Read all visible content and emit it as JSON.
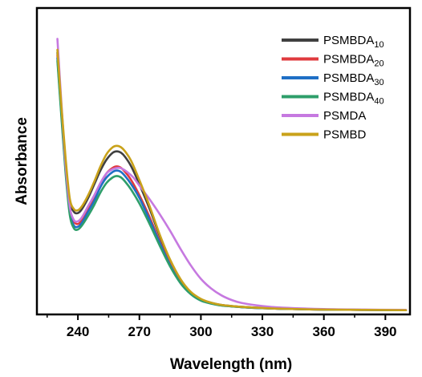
{
  "chart_data": {
    "type": "line",
    "title": "",
    "xlabel": "Wavelength (nm)",
    "ylabel": "Absorbance",
    "xlim": [
      220,
      402
    ],
    "ylim": [
      0,
      1.0
    ],
    "x_ticks": [
      240,
      270,
      300,
      330,
      360,
      390
    ],
    "x_tick_labels": [
      "240",
      "270",
      "300",
      "330",
      "360",
      "390"
    ],
    "y_tick_labels_shown": false,
    "grid": false,
    "legend": {
      "position": "top-right",
      "frame": false
    },
    "series": [
      {
        "name": "PSMBDA10",
        "label_main": "PSMBDA",
        "label_sub": "10",
        "color": "#404040",
        "x": [
          230,
          232,
          234,
          236,
          238,
          240,
          242,
          245,
          248,
          251,
          254,
          257,
          259,
          261,
          263,
          266,
          270,
          275,
          280,
          285,
          290,
          295,
          300,
          305,
          310,
          320,
          330,
          340,
          360,
          380,
          400
        ],
        "y": [
          0.94,
          0.73,
          0.54,
          0.4,
          0.36,
          0.355,
          0.37,
          0.41,
          0.46,
          0.51,
          0.55,
          0.575,
          0.58,
          0.575,
          0.56,
          0.525,
          0.46,
          0.37,
          0.27,
          0.18,
          0.11,
          0.065,
          0.04,
          0.028,
          0.02,
          0.013,
          0.009,
          0.006,
          0.003,
          0.002,
          0.001
        ]
      },
      {
        "name": "PSMBDA20",
        "label_main": "PSMBDA",
        "label_sub": "20",
        "color": "#e03a3e",
        "x": [
          230,
          232,
          234,
          236,
          238,
          240,
          242,
          245,
          248,
          251,
          254,
          257,
          259,
          261,
          263,
          266,
          270,
          275,
          280,
          285,
          290,
          295,
          300,
          305,
          310,
          320,
          330,
          340,
          360,
          380,
          400
        ],
        "y": [
          0.93,
          0.72,
          0.52,
          0.37,
          0.325,
          0.315,
          0.33,
          0.37,
          0.41,
          0.46,
          0.5,
          0.52,
          0.525,
          0.52,
          0.505,
          0.475,
          0.42,
          0.34,
          0.25,
          0.17,
          0.105,
          0.063,
          0.038,
          0.026,
          0.019,
          0.012,
          0.008,
          0.006,
          0.003,
          0.002,
          0.001
        ]
      },
      {
        "name": "PSMBDA30",
        "label_main": "PSMBDA",
        "label_sub": "30",
        "color": "#1f6fc5",
        "x": [
          230,
          232,
          234,
          236,
          238,
          240,
          242,
          245,
          248,
          251,
          254,
          257,
          259,
          261,
          263,
          266,
          270,
          275,
          280,
          285,
          290,
          295,
          300,
          305,
          310,
          320,
          330,
          340,
          360,
          380,
          400
        ],
        "y": [
          0.92,
          0.71,
          0.51,
          0.36,
          0.31,
          0.305,
          0.32,
          0.36,
          0.4,
          0.45,
          0.485,
          0.505,
          0.51,
          0.505,
          0.49,
          0.46,
          0.41,
          0.33,
          0.245,
          0.165,
          0.1,
          0.06,
          0.036,
          0.025,
          0.018,
          0.012,
          0.008,
          0.006,
          0.003,
          0.002,
          0.001
        ]
      },
      {
        "name": "PSMBDA40",
        "label_main": "PSMBDA",
        "label_sub": "40",
        "color": "#2e9e6a",
        "x": [
          230,
          232,
          234,
          236,
          238,
          240,
          242,
          245,
          248,
          251,
          254,
          257,
          259,
          261,
          263,
          266,
          270,
          275,
          280,
          285,
          290,
          295,
          300,
          305,
          310,
          320,
          330,
          340,
          360,
          380,
          400
        ],
        "y": [
          0.91,
          0.7,
          0.5,
          0.35,
          0.3,
          0.295,
          0.31,
          0.345,
          0.385,
          0.43,
          0.465,
          0.485,
          0.49,
          0.485,
          0.47,
          0.44,
          0.39,
          0.315,
          0.235,
          0.16,
          0.1,
          0.06,
          0.036,
          0.025,
          0.018,
          0.012,
          0.008,
          0.006,
          0.003,
          0.002,
          0.001
        ]
      },
      {
        "name": "PSMDA",
        "label_main": "PSMDA",
        "label_sub": "",
        "color": "#c679e0",
        "x": [
          230,
          232,
          234,
          236,
          238,
          240,
          242,
          245,
          248,
          251,
          254,
          257,
          260,
          262,
          264,
          267,
          270,
          275,
          280,
          285,
          290,
          295,
          300,
          305,
          310,
          315,
          320,
          330,
          340,
          360,
          380,
          400
        ],
        "y": [
          0.99,
          0.75,
          0.53,
          0.38,
          0.33,
          0.325,
          0.34,
          0.38,
          0.42,
          0.465,
          0.5,
          0.515,
          0.52,
          0.515,
          0.505,
          0.485,
          0.455,
          0.405,
          0.35,
          0.29,
          0.225,
          0.165,
          0.115,
          0.08,
          0.055,
          0.038,
          0.027,
          0.016,
          0.01,
          0.005,
          0.003,
          0.002
        ]
      },
      {
        "name": "PSMBD",
        "label_main": "PSMBD",
        "label_sub": "",
        "color": "#c9a21a",
        "x": [
          230,
          232,
          234,
          236,
          238,
          240,
          242,
          245,
          248,
          251,
          254,
          257,
          259,
          261,
          263,
          266,
          270,
          275,
          280,
          285,
          290,
          295,
          300,
          305,
          310,
          320,
          330,
          340,
          360,
          380,
          400
        ],
        "y": [
          0.95,
          0.74,
          0.555,
          0.41,
          0.37,
          0.365,
          0.38,
          0.42,
          0.47,
          0.525,
          0.57,
          0.595,
          0.6,
          0.595,
          0.58,
          0.545,
          0.475,
          0.38,
          0.275,
          0.185,
          0.115,
          0.068,
          0.042,
          0.028,
          0.02,
          0.013,
          0.009,
          0.006,
          0.003,
          0.002,
          0.001
        ]
      }
    ]
  }
}
